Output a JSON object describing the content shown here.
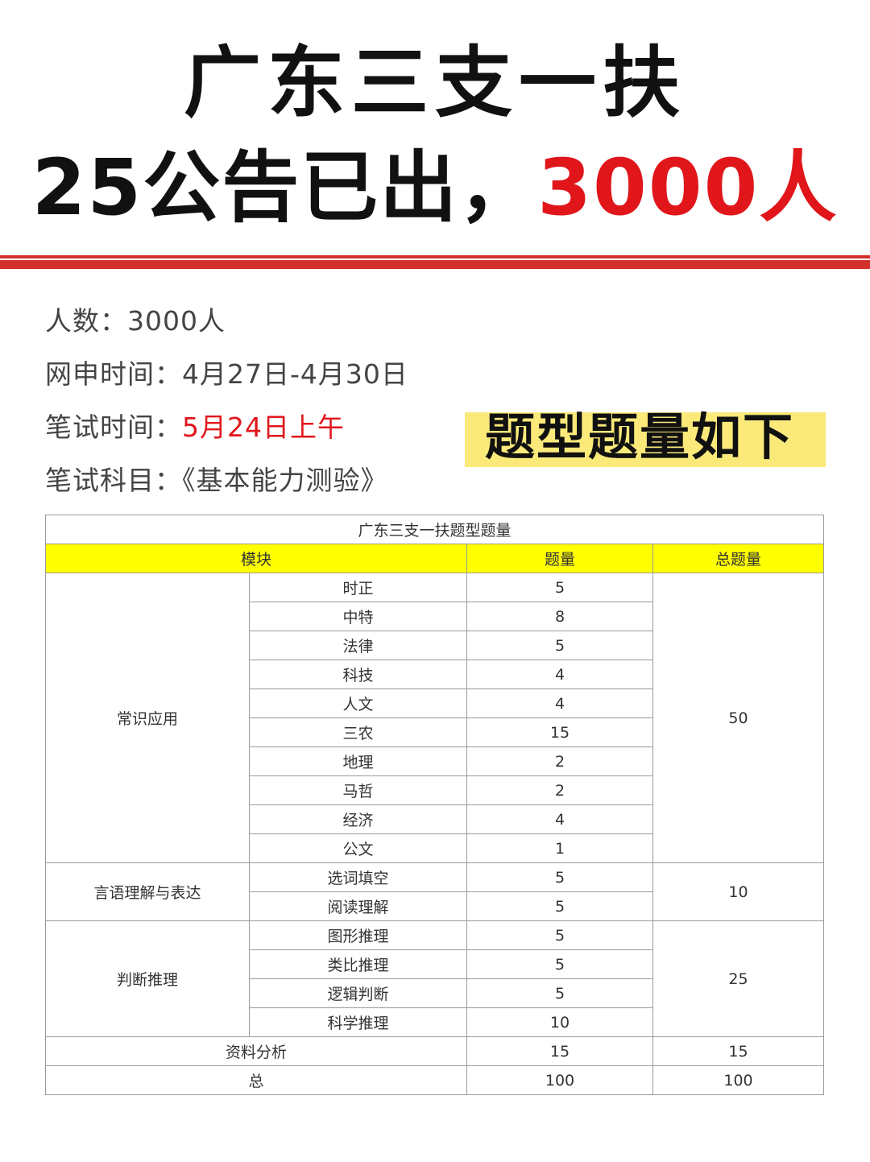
{
  "headline": {
    "line1": "广东三支一扶",
    "line2_prefix": "25公告已出，",
    "line2_highlight": "3000人"
  },
  "colors": {
    "accent_red": "#e0161b",
    "rule_red": "#d2302a",
    "badge_yellow": "#fbea7a",
    "table_header_yellow": "#ffff00"
  },
  "info": [
    {
      "label": "人数：",
      "value": "3000人",
      "highlight": false
    },
    {
      "label": "网申时间：",
      "value": "4月27日-4月30日",
      "highlight": false
    },
    {
      "label": "笔试时间：",
      "value": "5月24日上午",
      "highlight": true
    },
    {
      "label": "笔试科目：",
      "value": "《基本能力测验》",
      "highlight": false
    }
  ],
  "badge": "题型题量如下",
  "table": {
    "title": "广东三支一扶题型题量",
    "headers": [
      "模块",
      "题量",
      "总题量"
    ],
    "groups": [
      {
        "module": "常识应用",
        "total": "50",
        "items": [
          [
            "时正",
            "5"
          ],
          [
            "中特",
            "8"
          ],
          [
            "法律",
            "5"
          ],
          [
            "科技",
            "4"
          ],
          [
            "人文",
            "4"
          ],
          [
            "三农",
            "15"
          ],
          [
            "地理",
            "2"
          ],
          [
            "马哲",
            "2"
          ],
          [
            "经济",
            "4"
          ],
          [
            "公文",
            "1"
          ]
        ]
      },
      {
        "module": "言语理解与表达",
        "total": "10",
        "items": [
          [
            "选词填空",
            "5"
          ],
          [
            "阅读理解",
            "5"
          ]
        ]
      },
      {
        "module": "判断推理",
        "total": "25",
        "items": [
          [
            "图形推理",
            "5"
          ],
          [
            "类比推理",
            "5"
          ],
          [
            "逻辑判断",
            "5"
          ],
          [
            "科学推理",
            "10"
          ]
        ]
      }
    ],
    "footer_rows": [
      [
        "资料分析",
        "15",
        "15"
      ],
      [
        "总",
        "100",
        "100"
      ]
    ]
  }
}
